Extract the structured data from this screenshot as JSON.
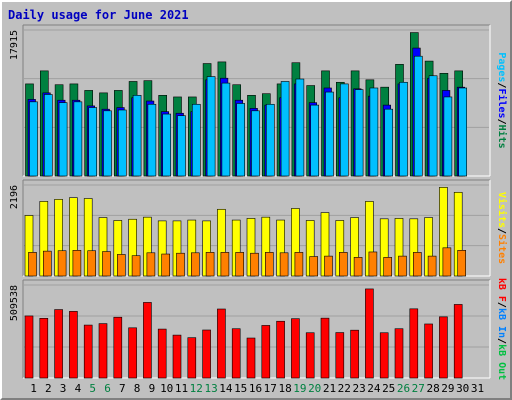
{
  "title": "Daily usage for June 2021",
  "colors": {
    "title": "#0000c0",
    "pages": "#00c0ff",
    "files": "#0000ff",
    "hits": "#008040",
    "visits": "#ffff00",
    "sites": "#ff8000",
    "kbytes": "#ff0000",
    "kbin": "#0080ff",
    "kbout": "#00c040",
    "weekend_day": "#008040",
    "weekday": "#000000",
    "panel_bg": "#c0c0c0"
  },
  "legends": {
    "top": [
      {
        "text": "Pages",
        "color": "#00c0ff"
      },
      {
        "text": "/",
        "color": "#000000"
      },
      {
        "text": "Files",
        "color": "#0000ff"
      },
      {
        "text": "/",
        "color": "#000000"
      },
      {
        "text": "Hits",
        "color": "#008040"
      }
    ],
    "middle": [
      {
        "text": "Visits",
        "color": "#ffff00"
      },
      {
        "text": "/",
        "color": "#000000"
      },
      {
        "text": "Sites",
        "color": "#ff8000"
      }
    ],
    "bottom": [
      {
        "text": "kB F",
        "color": "#ff0000"
      },
      {
        "text": "/",
        "color": "#000000"
      },
      {
        "text": "kB In",
        "color": "#0080ff"
      },
      {
        "text": "/",
        "color": "#000000"
      },
      {
        "text": "kB Out",
        "color": "#00c040"
      }
    ]
  },
  "chart_data": [
    {
      "type": "bar",
      "panel": "top",
      "y_max_label": "17915",
      "ylim": [
        0,
        17915
      ],
      "categories": [
        "1",
        "2",
        "3",
        "4",
        "5",
        "6",
        "7",
        "8",
        "9",
        "10",
        "11",
        "12",
        "13",
        "14",
        "15",
        "16",
        "17",
        "18",
        "19",
        "20",
        "21",
        "22",
        "23",
        "24",
        "25",
        "26",
        "27",
        "28",
        "29",
        "30",
        "31"
      ],
      "weekend": [
        5,
        6,
        12,
        13,
        19,
        20,
        26,
        27
      ],
      "series": [
        {
          "name": "Hits",
          "values": [
            11300,
            12900,
            11200,
            11300,
            10500,
            10200,
            10500,
            11600,
            11700,
            9900,
            9700,
            9700,
            13800,
            14000,
            11200,
            9900,
            10100,
            11300,
            13900,
            11100,
            12900,
            11500,
            12900,
            11800,
            10900,
            13700,
            17600,
            14100,
            12600,
            12900,
            0
          ]
        },
        {
          "name": "Files",
          "values": [
            9400,
            10200,
            9300,
            9300,
            8600,
            8200,
            8400,
            9600,
            9200,
            7900,
            7700,
            7900,
            11800,
            12000,
            9300,
            8300,
            8700,
            9600,
            11300,
            9000,
            10800,
            9600,
            10700,
            9800,
            8700,
            11300,
            15700,
            12000,
            10500,
            10900,
            0
          ]
        },
        {
          "name": "Pages",
          "values": [
            9100,
            10000,
            9000,
            9100,
            8400,
            8000,
            8100,
            9900,
            8800,
            7600,
            7400,
            8800,
            12200,
            11400,
            8900,
            8000,
            8800,
            11600,
            11900,
            8700,
            10300,
            11300,
            10600,
            10800,
            8200,
            11500,
            14700,
            12300,
            9700,
            10800,
            0
          ]
        }
      ]
    },
    {
      "type": "bar",
      "panel": "middle",
      "y_max_label": "2196",
      "ylim": [
        0,
        2196
      ],
      "categories": [
        "1",
        "2",
        "3",
        "4",
        "5",
        "6",
        "7",
        "8",
        "9",
        "10",
        "11",
        "12",
        "13",
        "14",
        "15",
        "16",
        "17",
        "18",
        "19",
        "20",
        "21",
        "22",
        "23",
        "24",
        "25",
        "26",
        "27",
        "28",
        "29",
        "30",
        "31"
      ],
      "series": [
        {
          "name": "Visits",
          "values": [
            1460,
            1800,
            1850,
            1890,
            1870,
            1410,
            1340,
            1370,
            1420,
            1330,
            1330,
            1350,
            1330,
            1610,
            1350,
            1390,
            1420,
            1350,
            1630,
            1340,
            1530,
            1340,
            1410,
            1800,
            1380,
            1390,
            1380,
            1410,
            2140,
            2020,
            0
          ]
        },
        {
          "name": "Sites",
          "values": [
            570,
            600,
            610,
            620,
            610,
            590,
            520,
            490,
            560,
            530,
            550,
            560,
            570,
            570,
            570,
            550,
            570,
            560,
            570,
            470,
            480,
            570,
            450,
            580,
            450,
            480,
            570,
            480,
            680,
            620,
            0
          ]
        }
      ]
    },
    {
      "type": "bar",
      "panel": "bottom",
      "y_max_label": "509538",
      "ylim": [
        0,
        509538
      ],
      "categories": [
        "1",
        "2",
        "3",
        "4",
        "5",
        "6",
        "7",
        "8",
        "9",
        "10",
        "11",
        "12",
        "13",
        "14",
        "15",
        "16",
        "17",
        "18",
        "19",
        "20",
        "21",
        "22",
        "23",
        "24",
        "25",
        "26",
        "27",
        "28",
        "29",
        "30",
        "31"
      ],
      "series": [
        {
          "name": "kB F",
          "values": [
            340000,
            327000,
            375000,
            365000,
            290000,
            298000,
            333000,
            275000,
            414000,
            268000,
            235000,
            221000,
            263000,
            378000,
            270000,
            219000,
            288000,
            311000,
            325000,
            248000,
            328000,
            249000,
            262000,
            488000,
            248000,
            270000,
            379000,
            296000,
            335000,
            403000,
            0
          ]
        }
      ]
    }
  ]
}
